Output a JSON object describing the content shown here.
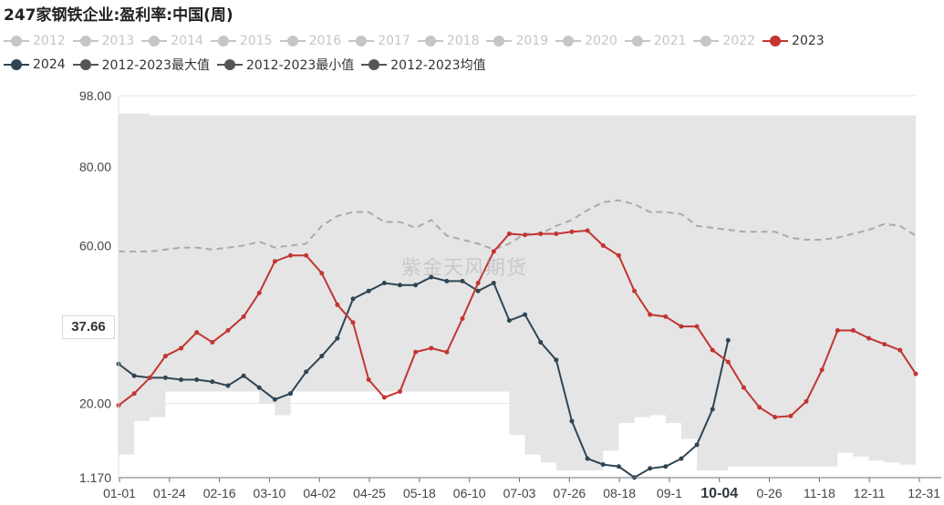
{
  "title": "247家钢铁企业:盈利率:中国(周)",
  "watermark": "紫金天风期货",
  "cursor_value": "37.66",
  "colors": {
    "inactive": "#c6c6c6",
    "y2023": "#c23531",
    "y2024": "#2f4554",
    "envelope": "#e5e5e5",
    "average": "#aaaaaa"
  },
  "legend": {
    "row1": [
      {
        "label": "2012",
        "state": "off"
      },
      {
        "label": "2013",
        "state": "off"
      },
      {
        "label": "2014",
        "state": "off"
      },
      {
        "label": "2015",
        "state": "off"
      },
      {
        "label": "2016",
        "state": "off"
      },
      {
        "label": "2017",
        "state": "off"
      },
      {
        "label": "2018",
        "state": "off"
      },
      {
        "label": "2019",
        "state": "off"
      },
      {
        "label": "2020",
        "state": "off"
      },
      {
        "label": "2021",
        "state": "off"
      },
      {
        "label": "2022",
        "state": "off"
      },
      {
        "label": "2023",
        "state": "on",
        "color": "#c23531"
      }
    ],
    "row2": [
      {
        "label": "2024",
        "state": "on",
        "color": "#2f4554"
      },
      {
        "label": "2012-2023最大值",
        "state": "on",
        "color": "#555555"
      },
      {
        "label": "2012-2023最小值",
        "state": "on",
        "color": "#555555"
      },
      {
        "label": "2012-2023均值",
        "state": "on",
        "color": "#555555"
      }
    ]
  },
  "chart_data": {
    "type": "line",
    "title": "247家钢铁企业:盈利率:中国(周)",
    "x_ticks": [
      "01-01",
      "01-24",
      "02-16",
      "03-10",
      "04-02",
      "04-25",
      "05-18",
      "06-10",
      "07-03",
      "07-26",
      "08-18",
      "09-1",
      "10-04",
      "0-26",
      "11-18",
      "12-11",
      "12-31"
    ],
    "highlighted_x_tick": "10-04",
    "y_ticks": [
      "98.00",
      "80.00",
      "60.00",
      "37.66",
      "20.00",
      "1.170"
    ],
    "ylim": [
      1.17,
      98.0
    ],
    "grid": "horizontal",
    "legend_position": "top",
    "series": [
      {
        "name": "2023",
        "color": "#c23531",
        "values": [
          19.5,
          22.5,
          26.5,
          32.0,
          34.0,
          38.0,
          35.5,
          38.5,
          42.0,
          48.0,
          56.0,
          57.5,
          57.5,
          53.0,
          45.0,
          40.5,
          26.0,
          21.5,
          23.0,
          33.0,
          34.0,
          33.0,
          41.5,
          50.5,
          58.5,
          63.0,
          62.7,
          63.0,
          63.0,
          63.5,
          63.8,
          60.0,
          57.5,
          48.5,
          42.5,
          42.0,
          39.5,
          39.5,
          33.5,
          30.5,
          24.0,
          19.0,
          16.5,
          16.8,
          20.5,
          28.5,
          38.5,
          38.5,
          36.5,
          35.0,
          33.5,
          27.5
        ]
      },
      {
        "name": "2024",
        "color": "#2f4554",
        "values": [
          30.0,
          27.0,
          26.5,
          26.5,
          26.0,
          26.0,
          25.5,
          24.5,
          27.0,
          24.0,
          21.0,
          22.5,
          28.0,
          32.0,
          36.5,
          46.5,
          48.5,
          50.5,
          50.0,
          50.0,
          52.0,
          51.0,
          51.0,
          48.5,
          50.5,
          41.0,
          42.5,
          35.5,
          31.0,
          15.5,
          6.0,
          4.5,
          4.0,
          1.2,
          3.5,
          4.0,
          6.0,
          9.5,
          18.5,
          36.0
        ]
      },
      {
        "name": "2012-2023最大值",
        "color": "#e5e5e5",
        "values": [
          93.5,
          93.5,
          93.0,
          93.0,
          93.0,
          93.0,
          93.0,
          93.0,
          93.0,
          93.0,
          93.0,
          93.0,
          93.0,
          93.0,
          93.0,
          93.0,
          93.0,
          93.0,
          93.0,
          93.0,
          93.0,
          93.0,
          93.0,
          93.0,
          93.0,
          93.0,
          93.0,
          93.0,
          93.0,
          93.0,
          93.0,
          93.0,
          93.0,
          93.0,
          93.0,
          93.0,
          93.0,
          93.0,
          93.0,
          93.0,
          93.0,
          93.0,
          93.0,
          93.0,
          93.0,
          93.0,
          93.0,
          93.0,
          93.0,
          93.0,
          93.0,
          93.0
        ]
      },
      {
        "name": "2012-2023最小值",
        "color": "#e5e5e5",
        "values": [
          7.0,
          15.5,
          16.5,
          23.0,
          23.0,
          23.0,
          23.0,
          23.0,
          23.0,
          20.0,
          17.0,
          23.0,
          23.0,
          23.0,
          23.0,
          23.0,
          23.0,
          23.0,
          23.0,
          23.0,
          23.0,
          23.0,
          23.0,
          23.0,
          23.0,
          12.0,
          7.0,
          5.0,
          3.0,
          3.0,
          3.0,
          8.0,
          15.0,
          16.5,
          17.0,
          15.0,
          11.0,
          3.0,
          3.0,
          4.0,
          4.0,
          4.0,
          4.0,
          4.0,
          4.0,
          4.0,
          7.5,
          6.5,
          5.5,
          5.0,
          4.5,
          4.0
        ]
      },
      {
        "name": "2012-2023均值",
        "color": "#aaaaaa",
        "values": [
          58.5,
          58.5,
          58.5,
          59.0,
          59.5,
          59.5,
          59.0,
          59.5,
          60.0,
          61.0,
          59.5,
          60.0,
          60.5,
          65.0,
          67.5,
          68.5,
          68.5,
          66.0,
          66.0,
          64.5,
          66.5,
          62.5,
          61.5,
          60.5,
          59.0,
          60.5,
          63.0,
          63.0,
          65.0,
          66.5,
          69.0,
          71.0,
          71.5,
          70.5,
          68.5,
          68.5,
          68.0,
          65.0,
          64.5,
          64.0,
          63.5,
          63.5,
          63.5,
          62.0,
          61.5,
          61.5,
          62.0,
          63.0,
          64.0,
          65.5,
          65.0,
          62.5
        ]
      }
    ]
  }
}
